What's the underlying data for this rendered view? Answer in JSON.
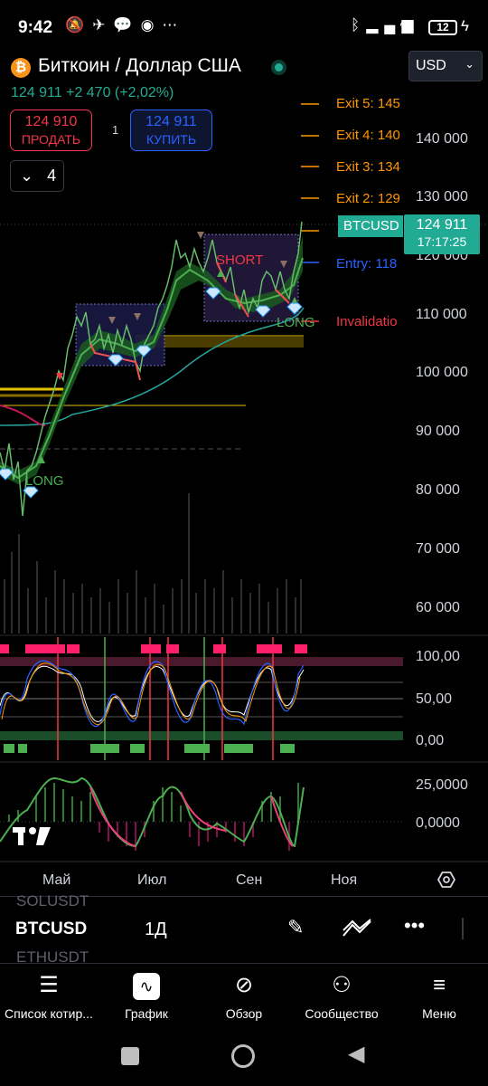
{
  "status_bar": {
    "time": "9:42",
    "battery": "12",
    "left_icons": [
      "muted-bell-icon",
      "telegram-icon",
      "chat-icon",
      "whatsapp-icon",
      "dots-icon"
    ],
    "right_icons": [
      "bluetooth-icon",
      "signal-icon",
      "wifi-icon",
      "battery-icon",
      "charging-icon"
    ]
  },
  "header": {
    "logo": "₿",
    "title": "Биткоин / Доллар США",
    "currency": "USD",
    "price_change": "124 911  +2 470 (+2,02%)",
    "sell_price": "124 910",
    "sell_label": "ПРОДАТЬ",
    "buy_price": "124 911",
    "buy_label": "КУПИТЬ",
    "spread": "1",
    "indicator_count": "4"
  },
  "chart": {
    "price_axis": [
      "140 000",
      "130 000",
      "120 000",
      "110 000",
      "100 000",
      "90 000",
      "80 000",
      "70 000",
      "60 000"
    ],
    "osc_axis": [
      "100,00",
      "50,00",
      "0,00"
    ],
    "macd_axis": [
      "25,0000",
      "0,0000"
    ],
    "time_axis": [
      "Май",
      "Июл",
      "Сен",
      "Ноя"
    ],
    "exits": [
      "Exit 5: 145",
      "Exit 4: 140",
      "Exit 3: 134",
      "Exit 2: 129"
    ],
    "entry": "Entry: 118",
    "invalidation": "Invalidatio",
    "symbol_tag": "BTCUSD",
    "last_price": "124 911",
    "countdown": "17:17:25",
    "notes": {
      "short": "SHORT",
      "long1": "LONG",
      "long2": "LONG"
    },
    "colors": {
      "up": "#22ab94",
      "down": "#f23645",
      "exit": "#ff9800",
      "entry": "#2962ff"
    }
  },
  "toolbar": {
    "ghost_top": "SOLUSDT",
    "ghost_bottom": "ETHUSDT",
    "symbol": "BTCUSD",
    "interval": "1Д",
    "icons": [
      "draw-pencil-icon",
      "indicators-icon",
      "more-icon"
    ]
  },
  "nav": [
    {
      "label": "Список котир...",
      "icon": "watchlist-icon"
    },
    {
      "label": "График",
      "icon": "chart-icon"
    },
    {
      "label": "Обзор",
      "icon": "compass-icon"
    },
    {
      "label": "Сообщество",
      "icon": "community-icon"
    },
    {
      "label": "Меню",
      "icon": "menu-icon"
    }
  ]
}
